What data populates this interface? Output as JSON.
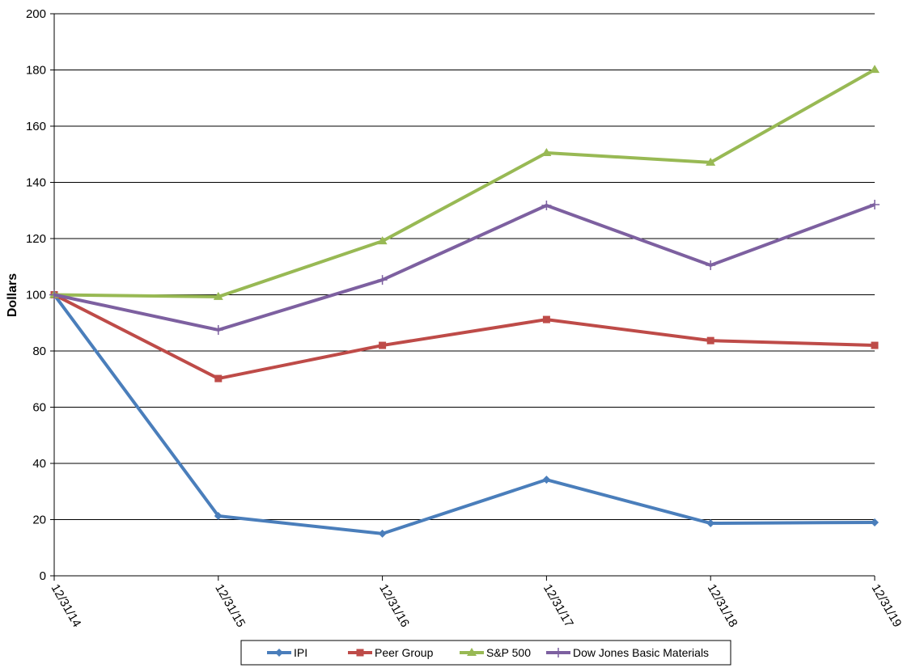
{
  "chart_data": {
    "type": "line",
    "title": "",
    "xlabel": "",
    "ylabel": "Dollars",
    "ylim": [
      0,
      200
    ],
    "yticks": [
      0,
      20,
      40,
      60,
      80,
      100,
      120,
      140,
      160,
      180,
      200
    ],
    "grid": true,
    "legend_position": "bottom",
    "categories": [
      "12/31/14",
      "12/31/15",
      "12/31/16",
      "12/31/17",
      "12/31/18",
      "12/31/19"
    ],
    "series": [
      {
        "name": "IPI",
        "color": "#4a7ebb",
        "marker": "diamond",
        "values": [
          100,
          21.3,
          15.0,
          34.2,
          18.7,
          19.0
        ]
      },
      {
        "name": "Peer Group",
        "color": "#be4b48",
        "marker": "square",
        "values": [
          100,
          70.2,
          82.0,
          91.2,
          83.7,
          82.0
        ]
      },
      {
        "name": "S&P 500",
        "color": "#98b954",
        "marker": "triangle",
        "values": [
          100,
          99.3,
          119.1,
          150.5,
          147.1,
          180.1
        ]
      },
      {
        "name": "Dow Jones Basic Materials",
        "color": "#7d60a0",
        "marker": "plus",
        "values": [
          100,
          87.5,
          105.3,
          131.8,
          110.5,
          132.1
        ]
      }
    ]
  }
}
